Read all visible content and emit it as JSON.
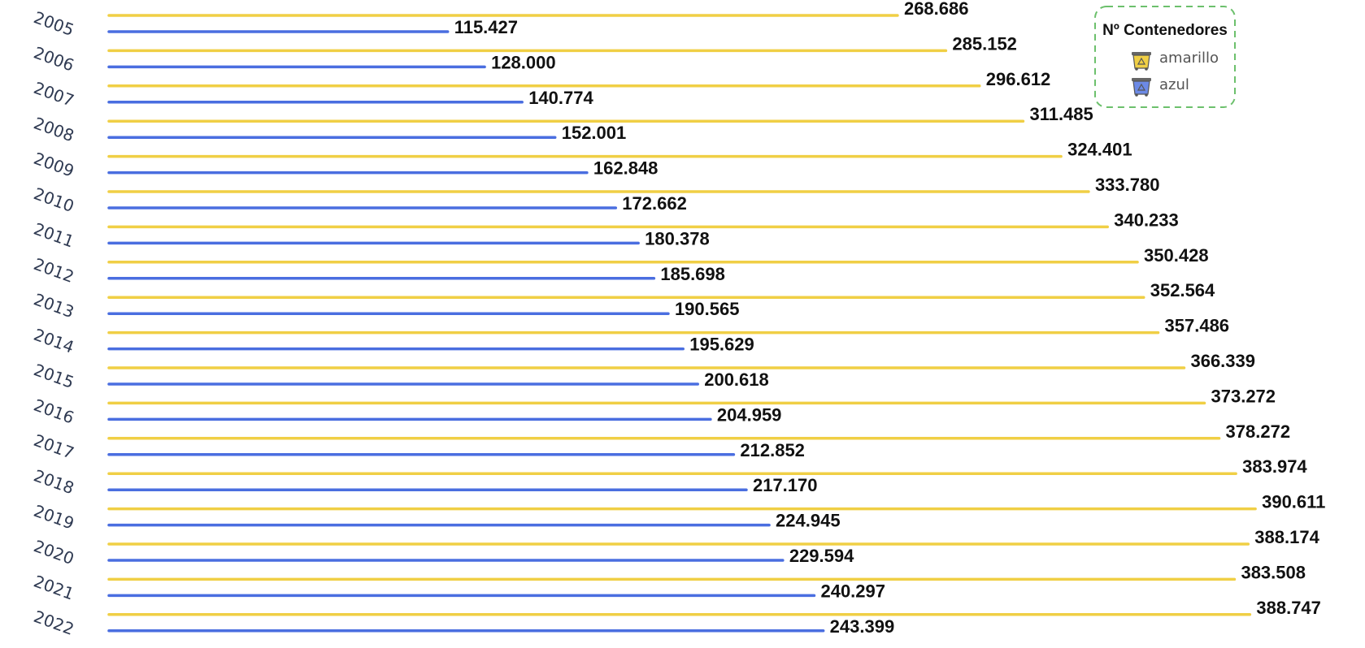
{
  "chart_data": {
    "type": "bar",
    "orientation": "horizontal",
    "categories": [
      "2005",
      "2006",
      "2007",
      "2008",
      "2009",
      "2010",
      "2011",
      "2012",
      "2013",
      "2014",
      "2015",
      "2016",
      "2017",
      "2018",
      "2019",
      "2020",
      "2021",
      "2022"
    ],
    "series": [
      {
        "name": "amarillo",
        "color": "#f0cf45",
        "values": [
          268686,
          285152,
          296612,
          311485,
          324401,
          333780,
          340233,
          350428,
          352564,
          357486,
          366339,
          373272,
          378272,
          383974,
          390611,
          388174,
          383508,
          388747
        ],
        "labels": [
          "268.686",
          "285.152",
          "296.612",
          "311.485",
          "324.401",
          "333.780",
          "340.233",
          "350.428",
          "352.564",
          "357.486",
          "366.339",
          "373.272",
          "378.272",
          "383.974",
          "390.611",
          "388.174",
          "383.508",
          "388.747"
        ]
      },
      {
        "name": "azul",
        "color": "#4a6ee0",
        "values": [
          115427,
          128000,
          140774,
          152001,
          162848,
          172662,
          180378,
          185698,
          190565,
          195629,
          200618,
          204959,
          212852,
          217170,
          224945,
          229594,
          240297,
          243399
        ],
        "labels": [
          "115.427",
          "128.000",
          "140.774",
          "152.001",
          "162.848",
          "172.662",
          "180.378",
          "185.698",
          "190.565",
          "195.629",
          "200.618",
          "204.959",
          "212.852",
          "217.170",
          "224.945",
          "229.594",
          "240.297",
          "243.399"
        ]
      }
    ],
    "legend": {
      "title": "Nº Contenedores",
      "position": "top-right",
      "border_color": "#6cc06c",
      "icon": "recycling-bin-icon"
    },
    "grid": false
  }
}
